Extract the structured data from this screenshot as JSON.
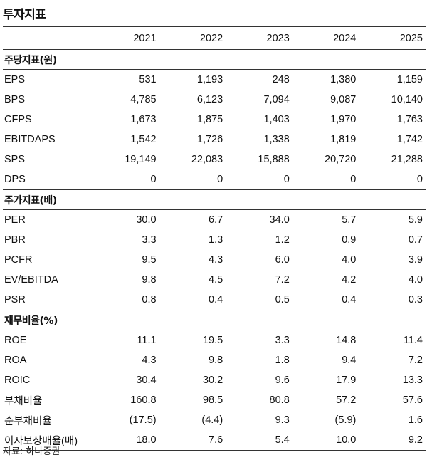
{
  "title": "투자지표",
  "years": [
    "2021",
    "2022",
    "2023",
    "2024",
    "2025"
  ],
  "sections": [
    {
      "name": "주당지표(원)",
      "rows": [
        {
          "label": "EPS",
          "values": [
            "531",
            "1,193",
            "248",
            "1,380",
            "1,159"
          ]
        },
        {
          "label": "BPS",
          "values": [
            "4,785",
            "6,123",
            "7,094",
            "9,087",
            "10,140"
          ]
        },
        {
          "label": "CFPS",
          "values": [
            "1,673",
            "1,875",
            "1,403",
            "1,970",
            "1,763"
          ]
        },
        {
          "label": "EBITDAPS",
          "values": [
            "1,542",
            "1,726",
            "1,338",
            "1,819",
            "1,742"
          ]
        },
        {
          "label": "SPS",
          "values": [
            "19,149",
            "22,083",
            "15,888",
            "20,720",
            "21,288"
          ]
        },
        {
          "label": "DPS",
          "values": [
            "0",
            "0",
            "0",
            "0",
            "0"
          ]
        }
      ]
    },
    {
      "name": "주가지표(배)",
      "rows": [
        {
          "label": "PER",
          "values": [
            "30.0",
            "6.7",
            "34.0",
            "5.7",
            "5.9"
          ]
        },
        {
          "label": "PBR",
          "values": [
            "3.3",
            "1.3",
            "1.2",
            "0.9",
            "0.7"
          ]
        },
        {
          "label": "PCFR",
          "values": [
            "9.5",
            "4.3",
            "6.0",
            "4.0",
            "3.9"
          ]
        },
        {
          "label": "EV/EBITDA",
          "values": [
            "9.8",
            "4.5",
            "7.2",
            "4.2",
            "4.0"
          ]
        },
        {
          "label": "PSR",
          "values": [
            "0.8",
            "0.4",
            "0.5",
            "0.4",
            "0.3"
          ]
        }
      ]
    },
    {
      "name": "재무비율(%)",
      "rows": [
        {
          "label": "ROE",
          "values": [
            "11.1",
            "19.5",
            "3.3",
            "14.8",
            "11.4"
          ]
        },
        {
          "label": "ROA",
          "values": [
            "4.3",
            "9.8",
            "1.8",
            "9.4",
            "7.2"
          ]
        },
        {
          "label": "ROIC",
          "values": [
            "30.4",
            "30.2",
            "9.6",
            "17.9",
            "13.3"
          ]
        },
        {
          "label": "부채비율",
          "values": [
            "160.8",
            "98.5",
            "80.8",
            "57.2",
            "57.6"
          ]
        },
        {
          "label": "순부채비율",
          "values": [
            "(17.5)",
            "(4.4)",
            "9.3",
            "(5.9)",
            "1.6"
          ]
        },
        {
          "label": "이자보상배율(배)",
          "values": [
            "18.0",
            "7.6",
            "5.4",
            "10.0",
            "9.2"
          ]
        }
      ]
    }
  ],
  "source": "자료: 하나증권"
}
